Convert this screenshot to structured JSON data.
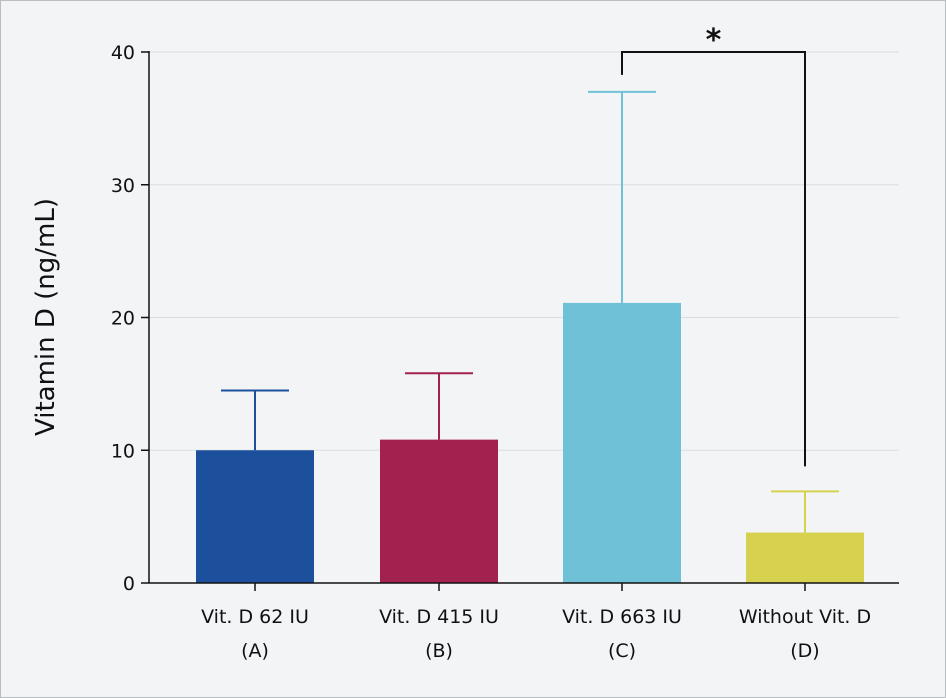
{
  "chart_data": {
    "type": "bar",
    "title": "",
    "xlabel": "",
    "ylabel": "Vitamin D (ng/mL)",
    "ylim": [
      0,
      40
    ],
    "yticks": [
      0,
      10,
      20,
      30,
      40
    ],
    "grid": true,
    "categories": [
      {
        "line1": "Vit. D 62 IU",
        "line2": "(A)"
      },
      {
        "line1": "Vit. D 415 IU",
        "line2": "(B)"
      },
      {
        "line1": "Vit. D 663 IU",
        "line2": "(C)"
      },
      {
        "line1": "Without Vit. D",
        "line2": "(D)"
      }
    ],
    "values": [
      10.0,
      10.8,
      21.1,
      3.8
    ],
    "error_upper": [
      14.5,
      15.8,
      37.0,
      6.9
    ],
    "colors": [
      "#1c4f9c",
      "#a2214e",
      "#6fc1d7",
      "#d6d250"
    ],
    "significance": {
      "from": 2,
      "to": 3,
      "label": "*",
      "level": 40
    }
  }
}
